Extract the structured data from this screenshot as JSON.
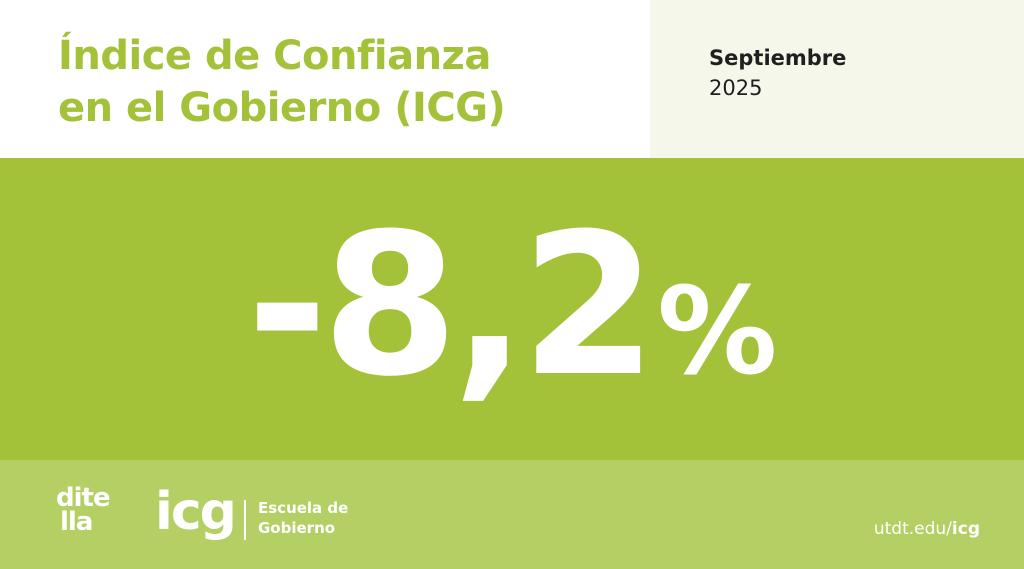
{
  "header": {
    "title_line1": "Índice de Confianza",
    "title_line2": "en el Gobierno (ICG)",
    "date_month": "Septiembre",
    "date_year": "2025"
  },
  "hero": {
    "value": "-8,2",
    "unit": "%"
  },
  "footer": {
    "logo_ditella_line1": "dite",
    "logo_ditella_line2": "lla",
    "logo_icg": "icg",
    "school_line1": "Escuela de",
    "school_line2": "Gobierno",
    "url_prefix": "utdt.edu/",
    "url_suffix": "icg"
  },
  "colors": {
    "brand_green": "#a3c23a",
    "footer_green": "#b4cf64",
    "date_panel_bg": "#f5f7ea",
    "text_dark": "#1f1f1f"
  }
}
